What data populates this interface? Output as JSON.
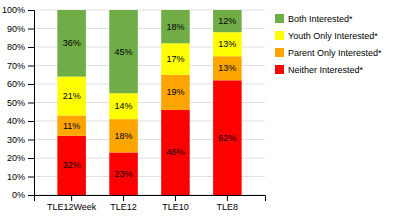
{
  "chart_data": {
    "type": "bar",
    "stacked": true,
    "data_labels": true,
    "grid": true,
    "legend": "right",
    "categories": [
      "TLE12Week",
      "TLE12",
      "TLE10",
      "TLE8"
    ],
    "series": [
      {
        "name": "Neither Interested*",
        "color": "#FF0000",
        "values": [
          32,
          23,
          46,
          62
        ],
        "value_labels": [
          "32%",
          "23%",
          "46%",
          "62%"
        ]
      },
      {
        "name": "Parent Only Interested*",
        "color": "#FFA500",
        "values": [
          11,
          18,
          19,
          13
        ],
        "value_labels": [
          "11%",
          "18%",
          "19%",
          "13%"
        ]
      },
      {
        "name": "Youth Only Interested*",
        "color": "#FFFF00",
        "values": [
          21,
          14,
          17,
          13
        ],
        "value_labels": [
          "21%",
          "14%",
          "17%",
          "13%"
        ]
      },
      {
        "name": "Both Interested*",
        "color": "#70AD47",
        "values": [
          36,
          45,
          18,
          12
        ],
        "value_labels": [
          "36%",
          "45%",
          "18%",
          "12%"
        ]
      }
    ],
    "ylim": [
      0,
      100
    ],
    "yticks": [
      {
        "value": 0,
        "label": "0%"
      },
      {
        "value": 10,
        "label": "10%"
      },
      {
        "value": 20,
        "label": "20%"
      },
      {
        "value": 30,
        "label": "30%"
      },
      {
        "value": 40,
        "label": "40%"
      },
      {
        "value": 50,
        "label": "50%"
      },
      {
        "value": 60,
        "label": "60%"
      },
      {
        "value": 70,
        "label": "70%"
      },
      {
        "value": 80,
        "label": "80%"
      },
      {
        "value": 90,
        "label": "90%"
      },
      {
        "value": 100,
        "label": "100%"
      }
    ]
  }
}
